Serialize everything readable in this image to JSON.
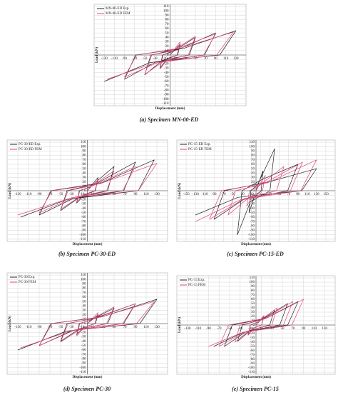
{
  "chart_data": [
    {
      "type": "line",
      "caption": "(a) Specimen MN-00-ED",
      "y_label": "Load (kN)",
      "x_label": "Displacement (mm)",
      "grid": true,
      "xlim": [
        -150,
        150
      ],
      "ylim": [
        -115,
        115
      ],
      "xticks": [
        -130,
        -110,
        -90,
        -70,
        -50,
        -30,
        -10,
        10,
        30,
        50,
        70,
        90,
        110,
        130
      ],
      "yticks": [
        -110,
        -100,
        -90,
        -80,
        -70,
        -60,
        -50,
        -40,
        -30,
        -20,
        -10,
        0,
        10,
        20,
        30,
        40,
        50,
        60,
        70,
        80,
        90,
        100,
        110
      ],
      "series": [
        {
          "name": "MN-00-ED Exp.",
          "color": "#222222",
          "x": [
            0,
            20,
            15,
            -6,
            -20,
            -15,
            6,
            50,
            38,
            -15,
            -50,
            -38,
            15,
            90,
            68,
            -27,
            -90,
            -68,
            27,
            130,
            98,
            -39,
            -130
          ],
          "values": [
            0,
            25,
            0,
            -8,
            -30,
            0,
            8,
            40,
            0,
            -12,
            -45,
            0,
            12,
            50,
            0,
            -15,
            -55,
            0,
            15,
            55,
            0,
            -17,
            -60
          ]
        },
        {
          "name": "MN-00-ED FEM",
          "color": "#e0457a",
          "x": [
            0,
            20,
            14,
            -5,
            -20,
            -14,
            5,
            50,
            36,
            -12,
            -50,
            -36,
            12,
            90,
            66,
            -22,
            -90,
            -66,
            22,
            125,
            92,
            -30,
            -125
          ],
          "values": [
            0,
            30,
            0,
            -10,
            -32,
            0,
            10,
            42,
            0,
            -14,
            -44,
            0,
            14,
            48,
            0,
            -16,
            -50,
            0,
            16,
            52,
            0,
            -18,
            -55
          ]
        }
      ]
    },
    {
      "type": "line",
      "caption": "(b) Specimen PC-30-ED",
      "y_label": "Load (kN)",
      "x_label": "Displacement (mm)",
      "grid": true,
      "xlim": [
        -150,
        150
      ],
      "ylim": [
        -115,
        115
      ],
      "xticks": [
        -130,
        -110,
        -90,
        -70,
        -50,
        -30,
        -10,
        10,
        30,
        50,
        70,
        90,
        110,
        130
      ],
      "yticks": [
        -110,
        -100,
        -90,
        -80,
        -70,
        -60,
        -50,
        -40,
        -30,
        -20,
        -10,
        0,
        10,
        20,
        30,
        40,
        50,
        60,
        70,
        80,
        90,
        100,
        110
      ],
      "series": [
        {
          "name": "PC-30-ED Exp.",
          "color": "#222222",
          "x": [
            0,
            20,
            15,
            -6,
            -20,
            -15,
            6,
            50,
            38,
            -15,
            -50,
            -38,
            15,
            90,
            68,
            -27,
            -90,
            -68,
            27,
            125,
            95,
            -38,
            -125
          ],
          "values": [
            0,
            30,
            0,
            -10,
            -28,
            0,
            9,
            55,
            0,
            -15,
            -45,
            0,
            15,
            65,
            0,
            -18,
            -55,
            0,
            18,
            70,
            0,
            -20,
            -60
          ]
        },
        {
          "name": "PC-30-ED FEM",
          "color": "#e0457a",
          "x": [
            0,
            20,
            14,
            -5,
            -20,
            -14,
            5,
            50,
            36,
            -12,
            -50,
            -36,
            12,
            90,
            66,
            -22,
            -90,
            -66,
            22,
            130,
            95,
            -30,
            -130
          ],
          "values": [
            0,
            25,
            0,
            -8,
            -25,
            0,
            8,
            45,
            0,
            -12,
            -42,
            0,
            12,
            55,
            0,
            -14,
            -50,
            0,
            15,
            62,
            0,
            -16,
            -55
          ]
        }
      ]
    },
    {
      "type": "line",
      "caption": "(c) Specimen PC-15-ED",
      "y_label": "Load (kN)",
      "x_label": "Displacement (mm)",
      "grid": true,
      "xlim": [
        -170,
        170
      ],
      "ylim": [
        -115,
        115
      ],
      "xticks": [
        -150,
        -130,
        -110,
        -90,
        -70,
        -50,
        -30,
        -10,
        10,
        30,
        50,
        70,
        90,
        110,
        130,
        150
      ],
      "yticks": [
        -110,
        -100,
        -90,
        -80,
        -70,
        -60,
        -50,
        -40,
        -30,
        -20,
        -10,
        0,
        10,
        20,
        30,
        40,
        50,
        60,
        70,
        80,
        90,
        100,
        110
      ],
      "series": [
        {
          "name": "PC-15-ED Exp.",
          "color": "#222222",
          "x": [
            0,
            15,
            11,
            -4,
            -15,
            -11,
            4,
            40,
            30,
            -12,
            -40,
            -30,
            12,
            90,
            68,
            -27,
            -90,
            -68,
            27,
            130,
            98,
            -39,
            -130
          ],
          "values": [
            0,
            45,
            0,
            -15,
            -50,
            0,
            15,
            95,
            0,
            -25,
            -100,
            0,
            25,
            60,
            0,
            -20,
            -65,
            0,
            20,
            50,
            0,
            -15,
            -55
          ]
        },
        {
          "name": "PC-15-ED FEM",
          "color": "#e0457a",
          "x": [
            0,
            20,
            14,
            -5,
            -20,
            -14,
            5,
            60,
            44,
            -15,
            -60,
            -44,
            15,
            100,
            74,
            -25,
            -100,
            -74,
            25,
            130,
            96,
            -32,
            -130
          ],
          "values": [
            0,
            35,
            0,
            -10,
            -35,
            0,
            10,
            55,
            0,
            -15,
            -55,
            0,
            15,
            65,
            0,
            -18,
            -65,
            0,
            18,
            70,
            0,
            -20,
            -70
          ]
        }
      ]
    },
    {
      "type": "line",
      "caption": "(d) Specimen PC-30",
      "y_label": "Load (kN)",
      "x_label": "Displacement (mm)",
      "grid": true,
      "xlim": [
        -150,
        150
      ],
      "ylim": [
        -115,
        115
      ],
      "xticks": [
        -130,
        -110,
        -90,
        -70,
        -50,
        -30,
        -10,
        10,
        30,
        50,
        70,
        90,
        110,
        130
      ],
      "yticks": [
        -110,
        -100,
        -90,
        -80,
        -70,
        -60,
        -50,
        -40,
        -30,
        -20,
        -10,
        0,
        10,
        20,
        30,
        40,
        50,
        60,
        70,
        80,
        90,
        100,
        110
      ],
      "series": [
        {
          "name": "PC-30 Exp.",
          "color": "#222222",
          "x": [
            0,
            20,
            15,
            -6,
            -20,
            -15,
            6,
            50,
            38,
            -15,
            -50,
            -38,
            15,
            90,
            68,
            -27,
            -90,
            -68,
            27,
            130,
            98,
            -39,
            -130
          ],
          "values": [
            0,
            20,
            0,
            -8,
            -25,
            0,
            8,
            35,
            0,
            -12,
            -40,
            0,
            12,
            45,
            0,
            -15,
            -50,
            0,
            15,
            55,
            0,
            -17,
            -60
          ]
        },
        {
          "name": "PC-30 FEM",
          "color": "#e0457a",
          "x": [
            0,
            20,
            14,
            -5,
            -20,
            -14,
            5,
            50,
            36,
            -12,
            -50,
            -36,
            12,
            90,
            66,
            -22,
            -90,
            -66,
            22,
            125,
            92,
            -30,
            -125
          ],
          "values": [
            0,
            25,
            0,
            -8,
            -28,
            0,
            8,
            38,
            0,
            -12,
            -42,
            0,
            12,
            45,
            0,
            -14,
            -50,
            0,
            14,
            50,
            0,
            -16,
            -55
          ]
        }
      ]
    },
    {
      "type": "line",
      "caption": "(e) Specimen PC-15",
      "y_label": "Load (kN)",
      "x_label": "Displacement (mm)",
      "grid": true,
      "xlim": [
        -150,
        150
      ],
      "ylim": [
        -115,
        115
      ],
      "xticks": [
        -130,
        -110,
        -90,
        -70,
        -50,
        -30,
        -10,
        10,
        30,
        50,
        70,
        90,
        110,
        130
      ],
      "yticks": [
        -110,
        -100,
        -90,
        -80,
        -70,
        -60,
        -50,
        -40,
        -30,
        -20,
        -10,
        0,
        10,
        20,
        30,
        40,
        50,
        60,
        70,
        80,
        90,
        100,
        110
      ],
      "series": [
        {
          "name": "PC-15 Exp.",
          "color": "#222222",
          "x": [
            0,
            15,
            11,
            -4,
            -15,
            -11,
            4,
            35,
            26,
            -10,
            -35,
            -26,
            10,
            60,
            45,
            -18,
            -60,
            -45,
            18,
            80,
            60,
            -24,
            -80
          ],
          "values": [
            0,
            20,
            0,
            -7,
            -22,
            0,
            7,
            35,
            0,
            -12,
            -38,
            0,
            12,
            50,
            0,
            -15,
            -50,
            0,
            15,
            55,
            0,
            -17,
            -50
          ]
        },
        {
          "name": "PC-15 FEM",
          "color": "#e0457a",
          "x": [
            0,
            15,
            11,
            -4,
            -15,
            -11,
            4,
            40,
            30,
            -12,
            -40,
            -30,
            12,
            70,
            52,
            -20,
            -70,
            -52,
            20,
            90,
            68,
            -27,
            -90
          ],
          "values": [
            0,
            22,
            0,
            -7,
            -24,
            0,
            7,
            40,
            0,
            -12,
            -40,
            0,
            12,
            55,
            0,
            -16,
            -50,
            0,
            16,
            60,
            0,
            -18,
            -50
          ]
        }
      ]
    }
  ]
}
